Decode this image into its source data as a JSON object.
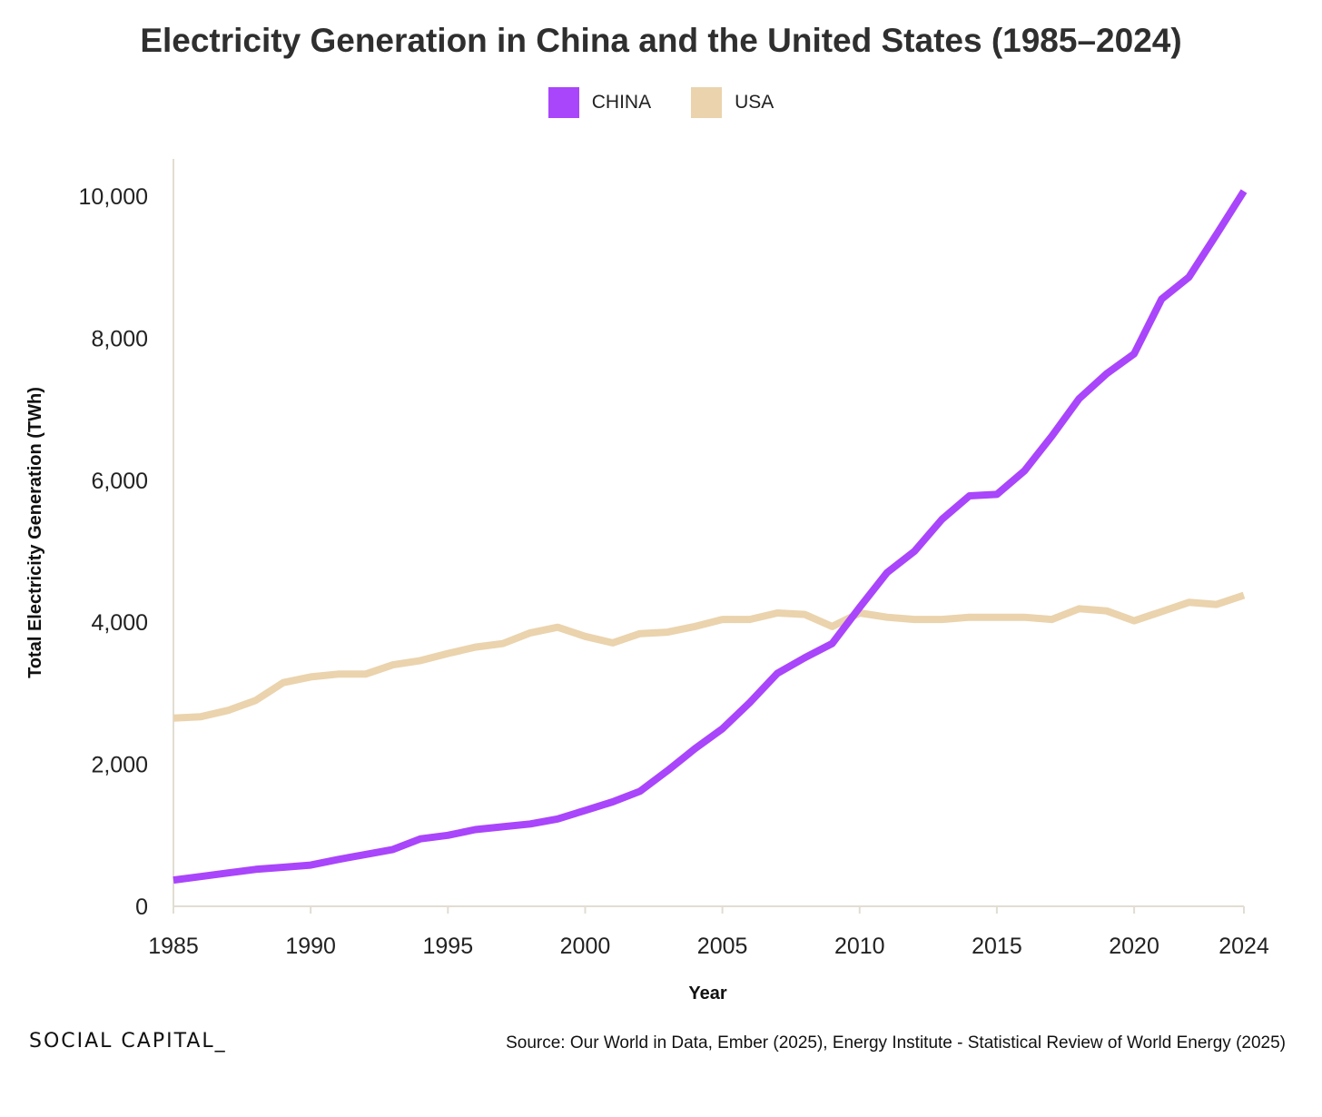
{
  "chart_data": {
    "type": "line",
    "title": "Electricity Generation in China and the United States (1985–2024)",
    "xlabel": "Year",
    "ylabel": "Total Electricity Generation (TWh)",
    "xlim": [
      1985,
      2024
    ],
    "ylim": [
      0,
      10500
    ],
    "x_ticks": [
      1985,
      1990,
      1995,
      2000,
      2005,
      2010,
      2015,
      2020,
      2024
    ],
    "x_tick_labels": [
      "1985",
      "1990",
      "1995",
      "2000",
      "2005",
      "2010",
      "2015",
      "2020",
      "2024"
    ],
    "y_ticks": [
      0,
      2000,
      4000,
      6000,
      8000,
      10000
    ],
    "y_tick_labels": [
      "0",
      "2,000",
      "4,000",
      "6,000",
      "8,000",
      "10,000"
    ],
    "grid": false,
    "legend_position": "top-center",
    "x": [
      1985,
      1986,
      1987,
      1988,
      1989,
      1990,
      1991,
      1992,
      1993,
      1994,
      1995,
      1996,
      1997,
      1998,
      1999,
      2000,
      2001,
      2002,
      2003,
      2004,
      2005,
      2006,
      2007,
      2008,
      2009,
      2010,
      2011,
      2012,
      2013,
      2014,
      2015,
      2016,
      2017,
      2018,
      2019,
      2020,
      2021,
      2022,
      2023,
      2024
    ],
    "series": [
      {
        "name": "CHINA",
        "color": "#a945fb",
        "values": [
          370,
          420,
          470,
          520,
          550,
          580,
          660,
          730,
          800,
          950,
          1000,
          1080,
          1120,
          1160,
          1230,
          1350,
          1470,
          1620,
          1910,
          2220,
          2500,
          2870,
          3280,
          3500,
          3700,
          4210,
          4700,
          5000,
          5450,
          5780,
          5800,
          6130,
          6620,
          7150,
          7500,
          7780,
          8550,
          8860,
          9460,
          10070
        ]
      },
      {
        "name": "USA",
        "color": "#ead3ad",
        "values": [
          2650,
          2670,
          2760,
          2900,
          3150,
          3230,
          3270,
          3270,
          3400,
          3460,
          3560,
          3650,
          3700,
          3850,
          3930,
          3800,
          3710,
          3840,
          3860,
          3940,
          4040,
          4040,
          4130,
          4110,
          3940,
          4130,
          4070,
          4040,
          4040,
          4070,
          4070,
          4070,
          4040,
          4190,
          4160,
          4020,
          4150,
          4280,
          4250,
          4380
        ]
      }
    ]
  },
  "footer": {
    "brand": "SOCIAL CAPITAL_",
    "source": "Source: Our World in Data, Ember (2025), Energy Institute - Statistical Review of World Energy (2025)"
  }
}
